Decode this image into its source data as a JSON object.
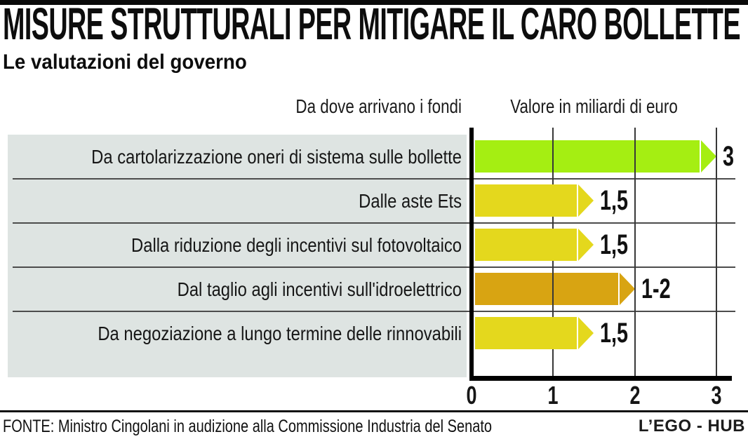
{
  "title": "MISURE STRUTTURALI PER MITIGARE IL CARO BOLLETTE",
  "subtitle": "Le valutazioni del governo",
  "header": {
    "source_column": "Da dove arrivano i fondi",
    "value_column": "Valore in miliardi di euro"
  },
  "chart_data": {
    "type": "bar",
    "orientation": "horizontal",
    "title": "Misure strutturali per mitigare il caro bollette",
    "xlabel": "Valore in miliardi di euro",
    "xlim": [
      0,
      3
    ],
    "xticks": [
      "0",
      "1",
      "2",
      "3"
    ],
    "grid": "vertical",
    "row_background": "#dee4e2",
    "categories": [
      "Da cartolarizzazione oneri di sistema sulle bollette",
      "Dalle aste Ets",
      "Dalla riduzione degli incentivi sul fotovoltaico",
      "Dal taglio agli incentivi sull'idroelettrico",
      "Da negoziazione a lungo termine delle rinnovabili"
    ],
    "values": [
      3,
      1.5,
      1.5,
      2,
      1.5
    ],
    "value_labels": [
      "3",
      "1,5",
      "1,5",
      "1-2",
      "1,5"
    ],
    "bar_colors": [
      "#a5ee12",
      "#e4d81d",
      "#e4d81d",
      "#d8a412",
      "#e4d81d"
    ]
  },
  "footer": {
    "source": "FONTE: Ministro Cingolani in audizione alla Commissione Industria del Senato",
    "logo": "L’EGO - HUB"
  }
}
